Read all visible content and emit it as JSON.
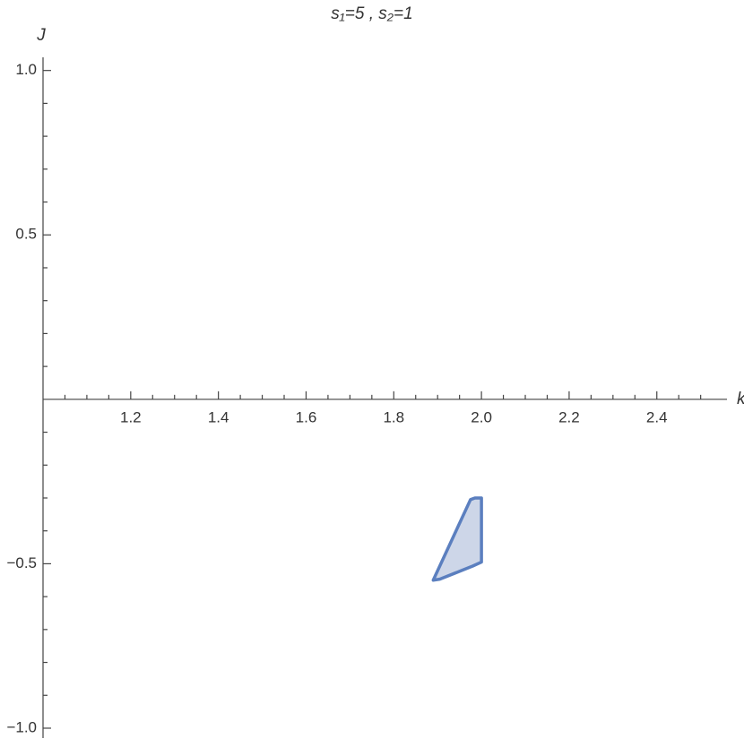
{
  "chart_data": {
    "type": "region",
    "title": "s₁=5 , s₂=1",
    "x_label": "k",
    "y_label": "J",
    "xlim": [
      1.0,
      2.56
    ],
    "ylim": [
      -1.03,
      1.04
    ],
    "xticks": [
      1.2,
      1.4,
      1.6,
      1.8,
      {
        "value": 2.0,
        "label": "2.0"
      },
      2.2,
      2.4
    ],
    "xminorticks": [
      1.05,
      1.1,
      1.15,
      1.25,
      1.3,
      1.35,
      1.45,
      1.5,
      1.55,
      1.65,
      1.7,
      1.75,
      1.85,
      1.9,
      1.95,
      2.05,
      2.1,
      2.15,
      2.25,
      2.3,
      2.35,
      2.45,
      2.5
    ],
    "yticks": [
      {
        "value": -1.0,
        "label": "−1.0"
      },
      {
        "value": -0.5,
        "label": "−0.5"
      },
      0.5,
      {
        "value": 1.0,
        "label": "1.0"
      }
    ],
    "yminorticks": [
      -0.9,
      -0.8,
      -0.7,
      -0.6,
      -0.4,
      -0.3,
      -0.2,
      -0.1,
      0.1,
      0.2,
      0.3,
      0.4,
      0.6,
      0.7,
      0.8,
      0.9
    ],
    "series": [
      {
        "color": "#5b7fbf",
        "fill": "#cdd6e8",
        "x": [
          1.89,
          1.975,
          1.985,
          2.0,
          2.0,
          1.98,
          1.905
        ],
        "values": [
          -0.55,
          -0.305,
          -0.3,
          -0.3,
          -0.495,
          -0.507,
          -0.547
        ]
      }
    ]
  }
}
